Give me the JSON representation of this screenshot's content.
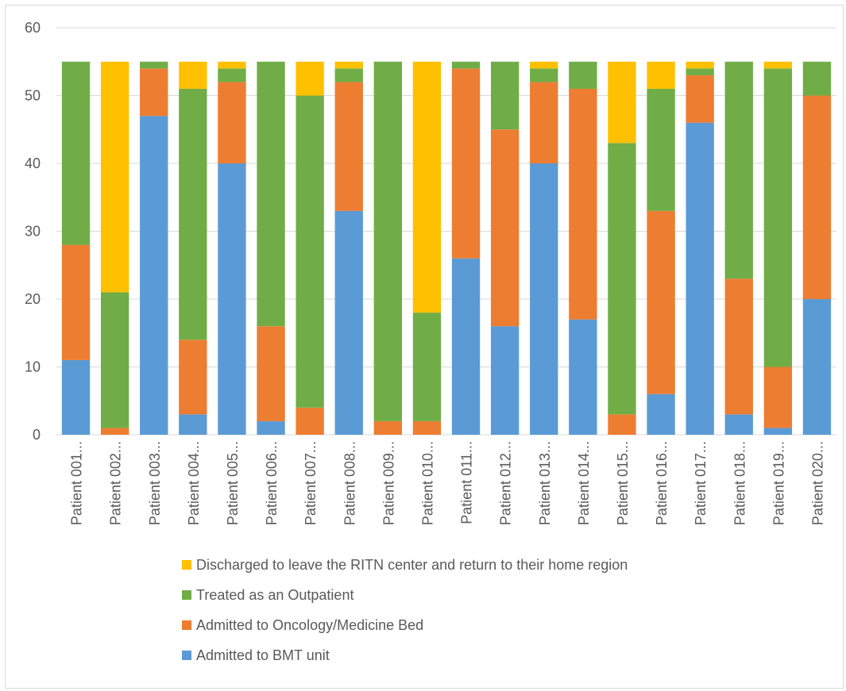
{
  "chart_data": {
    "type": "bar",
    "stacked": true,
    "title": "",
    "xlabel": "",
    "ylabel": "",
    "ylim": [
      0,
      60
    ],
    "y_ticks": [
      0,
      10,
      20,
      30,
      40,
      50,
      60
    ],
    "grid": true,
    "legend_position": "bottom",
    "categories": [
      "Patient 001...",
      "Patient 002...",
      "Patient 003...",
      "Patient 004...",
      "Patient 005...",
      "Patient 006...",
      "Patient 007...",
      "Patient 008...",
      "Patient 009...",
      "Patient 010...",
      "Patient 011...",
      "Patient 012...",
      "Patient 013...",
      "Patient 014...",
      "Patient 015...",
      "Patient 016...",
      "Patient 017...",
      "Patient 018...",
      "Patient 019...",
      "Patient 020..."
    ],
    "series": [
      {
        "name": "Admitted to BMT unit",
        "color": "#5b9bd5",
        "values": [
          11,
          0,
          47,
          3,
          40,
          2,
          0,
          33,
          0,
          0,
          26,
          16,
          40,
          17,
          0,
          6,
          46,
          3,
          1,
          20
        ]
      },
      {
        "name": "Admitted to Oncology/Medicine Bed",
        "color": "#ed7d31",
        "values": [
          17,
          1,
          7,
          11,
          12,
          14,
          4,
          19,
          2,
          2,
          28,
          29,
          12,
          34,
          3,
          27,
          7,
          20,
          9,
          30
        ]
      },
      {
        "name": "Treated as an Outpatient",
        "color": "#70ad47",
        "values": [
          27,
          20,
          1,
          37,
          2,
          39,
          46,
          2,
          53,
          16,
          1,
          10,
          2,
          4,
          40,
          18,
          1,
          32,
          44,
          5
        ]
      },
      {
        "name": "Discharged to leave the RITN center and return to their home region",
        "color": "#ffc000",
        "values": [
          0,
          34,
          0,
          4,
          1,
          0,
          5,
          1,
          0,
          37,
          0,
          0,
          1,
          0,
          12,
          4,
          1,
          0,
          1,
          0
        ]
      }
    ],
    "legend_order": [
      3,
      2,
      1,
      0
    ],
    "gridline_color": "#d9d9d9",
    "axis_line_color": "#d9d9d9"
  }
}
